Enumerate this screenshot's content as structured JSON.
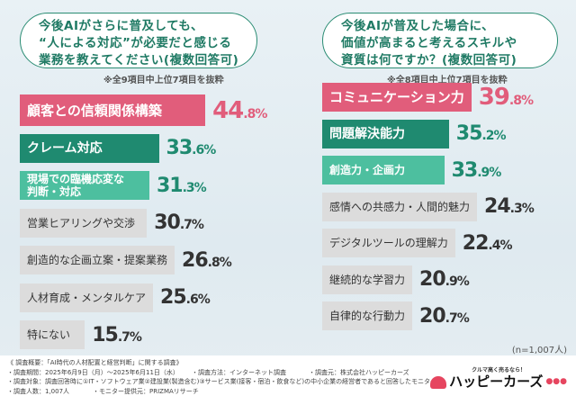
{
  "chart_data": [
    {
      "type": "bar",
      "orientation": "horizontal",
      "title": "今後AIがさらに普及しても、“人による対応”が必要だと感じる業務を教えてください(複数回答可)",
      "note": "※全9項目中上位7項目を抜粋",
      "unit": "%",
      "categories": [
        "顧客との信頼関係構築",
        "クレーム対応",
        "現場での臨機応変な判断・対応",
        "営業ヒアリングや交渉",
        "創造的な企画立案・提案業務",
        "人材育成・メンタルケア",
        "特にない"
      ],
      "values": [
        44.8,
        33.6,
        31.3,
        30.7,
        26.8,
        25.6,
        15.7
      ]
    },
    {
      "type": "bar",
      "orientation": "horizontal",
      "title": "今後AIが普及した場合に、価値が高まると考えるスキルや資質は何ですか？(複数回答可)",
      "note": "※全8項目中上位7項目を抜粋",
      "unit": "%",
      "categories": [
        "コミュニケーション力",
        "問題解決能力",
        "創造力・企画力",
        "感情への共感力・人間的魅力",
        "デジタルツールの理解力",
        "継続的な学習力",
        "自律的な行動力"
      ],
      "values": [
        39.8,
        35.2,
        33.9,
        24.3,
        22.4,
        20.9,
        20.7
      ]
    }
  ],
  "left": {
    "q1": "今後AIがさらに普及しても、",
    "q2": "“人による対応”が必要だと感じる",
    "q3": "業務を教えてください(複数回答可)"
  },
  "right": {
    "q1": "今後AIが普及した場合に、",
    "q2": "価値が高まると考えるスキルや",
    "q3": "資質は何ですか？(複数回答可)"
  },
  "sample": "(n=1,007人)",
  "footer": {
    "l1": "《 調査概要：「AI時代の人材配置と経営判断」に関する調査》",
    "period": "・調査期間：2025年6月9日（月）～2025年6月11日（水）",
    "method": "・調査方法：インターネット調査",
    "org": "・調査元：株式会社ハッピーカーズ",
    "target": "・調査対象：調査回答時に①IT・ソフトウェア業②建設業(製造含む)③サービス業(接客・宿泊・飲食など)の中小企業の経営者であると回答したモニター",
    "count": "・調査人数：1,007人",
    "provider": "・モニター提供元：PRIZMAリサーチ"
  },
  "logo": {
    "tagline": "クルマ高く売るなら！",
    "name": "ハッピーカーズ"
  },
  "colors": [
    "#e15d7b",
    "#1f8a70",
    "#4dbf9f",
    "#dcdcdc"
  ]
}
